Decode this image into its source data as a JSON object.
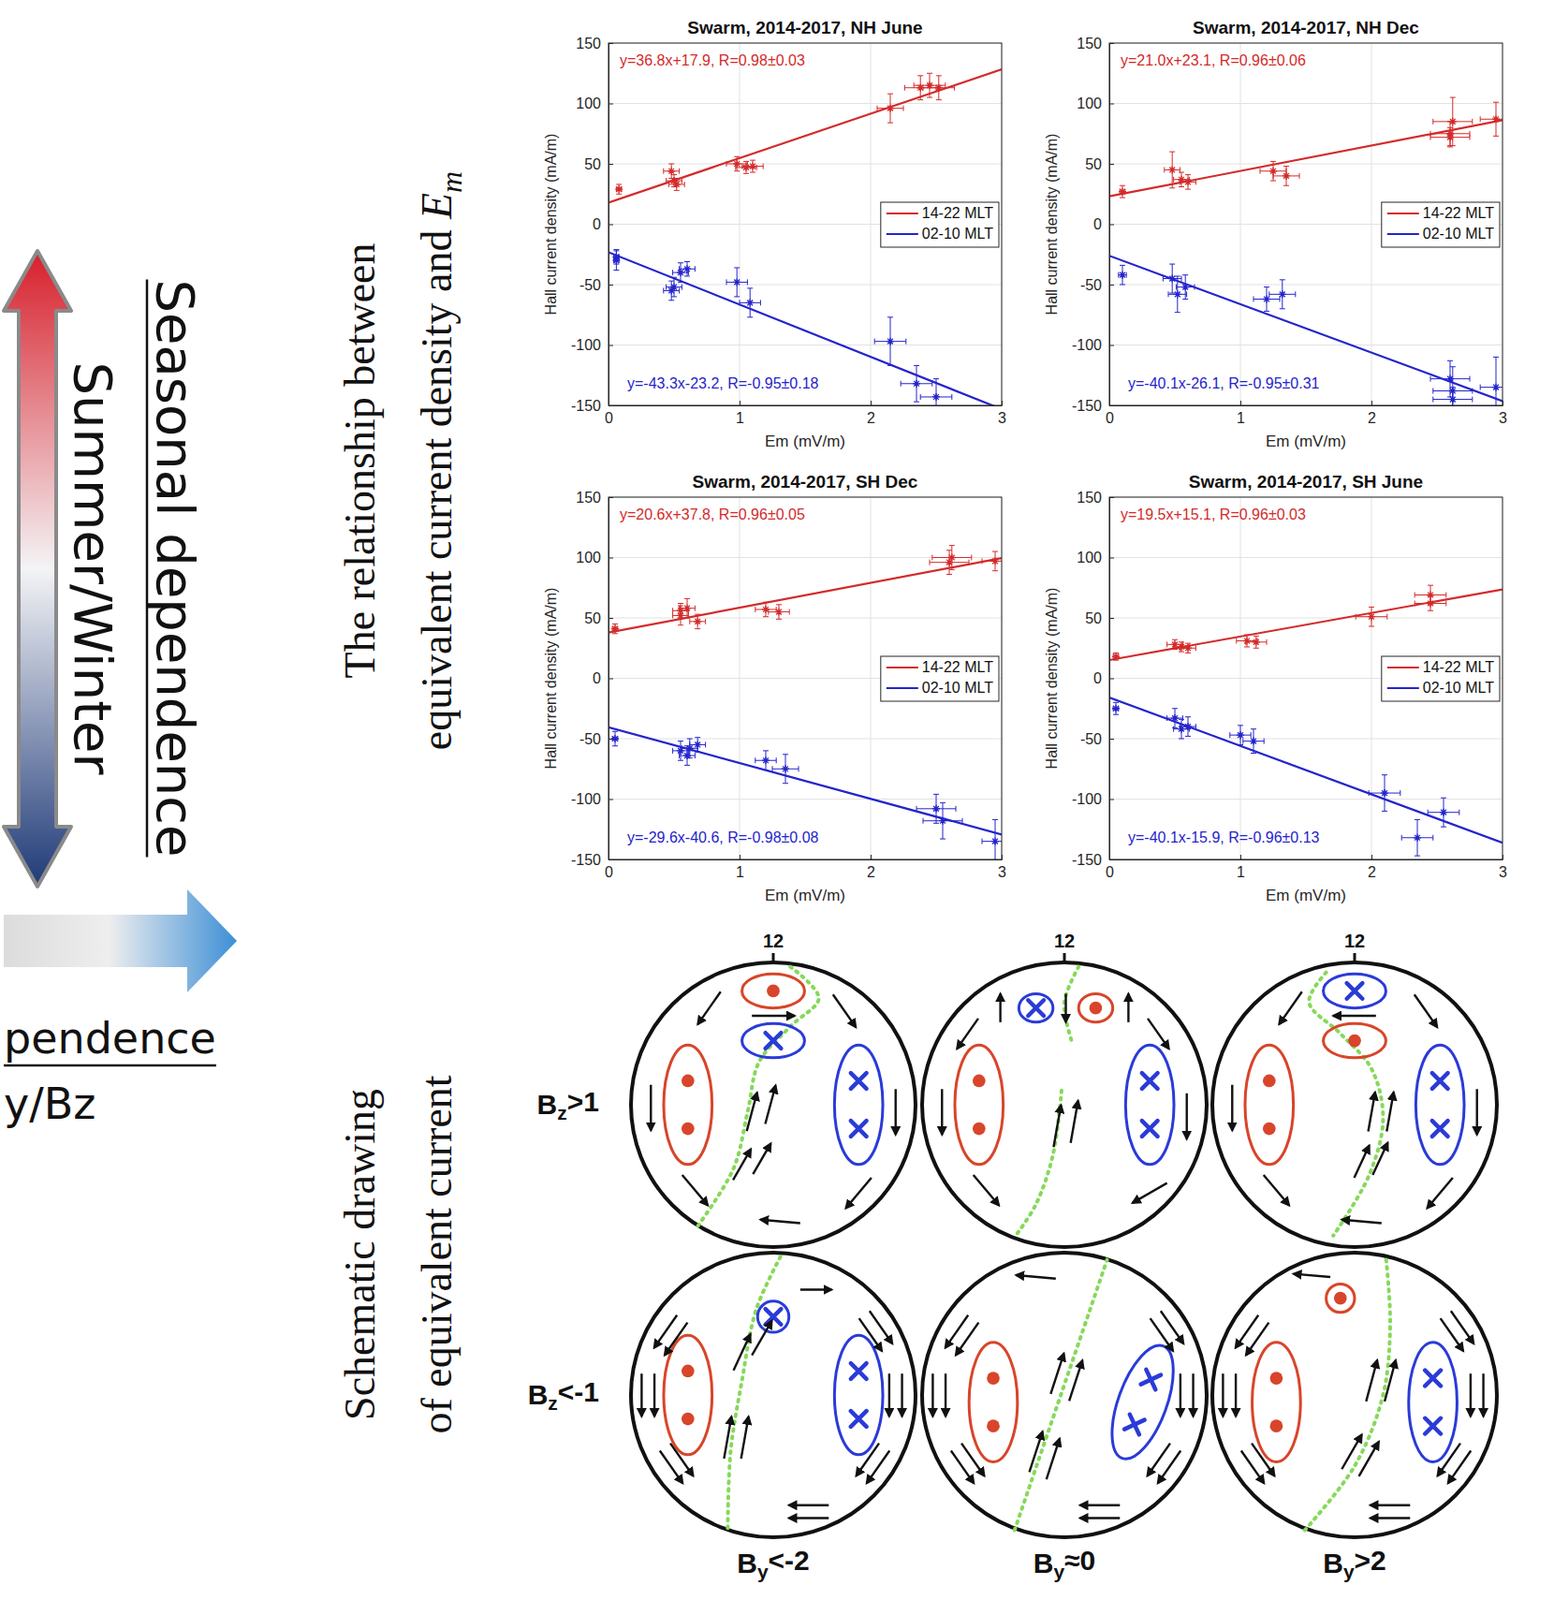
{
  "left_panel": {
    "seasonal_title": "Seasonal dependence",
    "seasonal_label": "Summer/Winter",
    "imf_title_fragment": "pendence",
    "imf_label_fragment": "y/Bz"
  },
  "row_titles": {
    "relationship": [
      [
        "The relationship between"
      ],
      [
        "equivalent current density and ",
        "E",
        "m"
      ]
    ],
    "schematic": [
      [
        "Schematic drawing"
      ],
      [
        "of equivalent current"
      ]
    ]
  },
  "chart_data": [
    {
      "type": "scatter",
      "title": "Swarm, 2014-2017, NH June",
      "x_label": "Em (mV/m)",
      "y_label": "Hall current density (mA/m)",
      "xlim": [
        0,
        3
      ],
      "ylim": [
        -150,
        150
      ],
      "xticks": [
        0,
        1,
        2,
        3
      ],
      "yticks": [
        -150,
        -100,
        -50,
        0,
        50,
        100,
        150
      ],
      "grid": true,
      "legend": "right",
      "series": [
        {
          "name": "14-22 MLT",
          "color": "#d42a2a",
          "marker": "asterisk",
          "x": [
            0.08,
            0.48,
            0.5,
            0.52,
            0.98,
            1.05,
            1.1,
            2.15,
            2.38,
            2.45,
            2.52
          ],
          "values": [
            29,
            44,
            36,
            33,
            50,
            47,
            48,
            96,
            113,
            115,
            113
          ],
          "x_error": [
            0.02,
            0.06,
            0.06,
            0.06,
            0.08,
            0.08,
            0.08,
            0.1,
            0.12,
            0.12,
            0.12
          ],
          "error": [
            4,
            6,
            5,
            5,
            6,
            5,
            5,
            12,
            10,
            10,
            10
          ],
          "fit": {
            "x": [
              0,
              3
            ],
            "values": [
              17.9,
              128.3
            ],
            "label": "y=36.8x+17.9, R=0.98±0.03"
          }
        },
        {
          "name": "02-10 MLT",
          "color": "#2424cc",
          "marker": "asterisk",
          "x": [
            0.06,
            0.06,
            0.48,
            0.5,
            0.55,
            0.6,
            0.98,
            1.08,
            2.15,
            2.35,
            2.5
          ],
          "values": [
            -30,
            -27,
            -55,
            -52,
            -40,
            -37,
            -48,
            -65,
            -97,
            -132,
            -143
          ],
          "x_error": [
            0.02,
            0.02,
            0.06,
            0.06,
            0.06,
            0.06,
            0.08,
            0.08,
            0.12,
            0.12,
            0.12
          ],
          "error": [
            8,
            6,
            8,
            8,
            8,
            6,
            12,
            12,
            20,
            15,
            15
          ],
          "fit": {
            "x": [
              0,
              3
            ],
            "values": [
              -23.2,
              -153.1
            ],
            "label": "y=-43.3x-23.2, R=-0.95±0.18"
          }
        }
      ]
    },
    {
      "type": "scatter",
      "title": "Swarm, 2014-2017, NH Dec",
      "x_label": "Em (mV/m)",
      "y_label": "Hall current density (mA/m)",
      "xlim": [
        0,
        3
      ],
      "ylim": [
        -150,
        150
      ],
      "xticks": [
        0,
        1,
        2,
        3
      ],
      "yticks": [
        -150,
        -100,
        -50,
        0,
        50,
        100,
        150
      ],
      "grid": true,
      "legend": "right",
      "series": [
        {
          "name": "14-22 MLT",
          "color": "#d42a2a",
          "marker": "asterisk",
          "x": [
            0.1,
            0.48,
            0.55,
            0.6,
            1.25,
            1.35,
            2.6,
            2.62,
            2.6,
            2.95
          ],
          "values": [
            27,
            45,
            37,
            35,
            44,
            40,
            75,
            85,
            72,
            87
          ],
          "x_error": [
            0.02,
            0.06,
            0.06,
            0.06,
            0.1,
            0.1,
            0.15,
            0.15,
            0.15,
            0.12
          ],
          "error": [
            5,
            15,
            6,
            6,
            8,
            8,
            10,
            20,
            8,
            14
          ],
          "fit": {
            "x": [
              0,
              3
            ],
            "values": [
              23.1,
              86.1
            ],
            "label": "y=21.0x+23.1, R=0.96±0.06"
          }
        },
        {
          "name": "02-10 MLT",
          "color": "#2424cc",
          "marker": "asterisk",
          "x": [
            0.1,
            0.48,
            0.52,
            0.58,
            1.2,
            1.32,
            2.6,
            2.62,
            2.62,
            2.95
          ],
          "values": [
            -42,
            -45,
            -58,
            -52,
            -62,
            -58,
            -128,
            -138,
            -145,
            -135
          ],
          "x_error": [
            0.03,
            0.07,
            0.07,
            0.07,
            0.1,
            0.1,
            0.15,
            0.15,
            0.15,
            0.12
          ],
          "error": [
            8,
            12,
            15,
            10,
            10,
            12,
            15,
            20,
            10,
            25
          ],
          "fit": {
            "x": [
              0,
              3
            ],
            "values": [
              -26.1,
              -146.4
            ],
            "label": "y=-40.1x-26.1, R=-0.95±0.31"
          }
        }
      ]
    },
    {
      "type": "scatter",
      "title": "Swarm, 2014-2017, SH Dec",
      "x_label": "Em (mV/m)",
      "y_label": "Hall current density (mA/m)",
      "xlim": [
        0,
        3
      ],
      "ylim": [
        -150,
        150
      ],
      "xticks": [
        0,
        1,
        2,
        3
      ],
      "yticks": [
        -150,
        -100,
        -50,
        0,
        50,
        100,
        150
      ],
      "grid": true,
      "legend": "right",
      "series": [
        {
          "name": "14-22 MLT",
          "color": "#d42a2a",
          "marker": "asterisk",
          "x": [
            0.05,
            0.55,
            0.6,
            0.55,
            0.68,
            1.2,
            1.3,
            2.6,
            2.62,
            2.95
          ],
          "values": [
            41,
            52,
            58,
            56,
            47,
            57,
            55,
            96,
            100,
            97
          ],
          "x_error": [
            0.02,
            0.06,
            0.06,
            0.06,
            0.06,
            0.08,
            0.08,
            0.15,
            0.15,
            0.1
          ],
          "error": [
            4,
            8,
            8,
            6,
            6,
            6,
            6,
            10,
            10,
            8
          ],
          "fit": {
            "x": [
              0,
              3
            ],
            "values": [
              37.8,
              99.6
            ],
            "label": "y=20.6x+37.8, R=0.96±0.05"
          }
        },
        {
          "name": "02-10 MLT",
          "color": "#2424cc",
          "marker": "asterisk",
          "x": [
            0.05,
            0.55,
            0.6,
            0.62,
            0.68,
            1.2,
            1.35,
            2.5,
            2.55,
            2.95
          ],
          "values": [
            -50,
            -60,
            -64,
            -58,
            -55,
            -68,
            -75,
            -108,
            -118,
            -135
          ],
          "x_error": [
            0.02,
            0.06,
            0.06,
            0.06,
            0.06,
            0.08,
            0.1,
            0.15,
            0.15,
            0.1
          ],
          "error": [
            6,
            8,
            8,
            8,
            6,
            8,
            12,
            12,
            15,
            18
          ],
          "fit": {
            "x": [
              0,
              3
            ],
            "values": [
              -40.6,
              -129.4
            ],
            "label": "y=-29.6x-40.6, R=-0.98±0.08"
          }
        }
      ]
    },
    {
      "type": "scatter",
      "title": "Swarm, 2014-2017, SH June",
      "x_label": "Em (mV/m)",
      "y_label": "Hall current density (mA/m)",
      "xlim": [
        0,
        3
      ],
      "ylim": [
        -150,
        150
      ],
      "xticks": [
        0,
        1,
        2,
        3
      ],
      "yticks": [
        -150,
        -100,
        -50,
        0,
        50,
        100,
        150
      ],
      "grid": true,
      "legend": "right",
      "series": [
        {
          "name": "14-22 MLT",
          "color": "#d42a2a",
          "marker": "asterisk",
          "x": [
            0.05,
            0.5,
            0.55,
            0.6,
            1.05,
            1.12,
            2.0,
            2.45,
            2.45
          ],
          "values": [
            18,
            28,
            26,
            25,
            31,
            30,
            51,
            62,
            69
          ],
          "x_error": [
            0.02,
            0.06,
            0.06,
            0.06,
            0.08,
            0.08,
            0.12,
            0.12,
            0.12
          ],
          "error": [
            3,
            4,
            4,
            4,
            5,
            5,
            8,
            6,
            8
          ],
          "fit": {
            "x": [
              0,
              3
            ],
            "values": [
              15.1,
              73.6
            ],
            "label": "y=19.5x+15.1, R=0.96±0.03"
          }
        },
        {
          "name": "02-10 MLT",
          "color": "#2424cc",
          "marker": "asterisk",
          "x": [
            0.05,
            0.5,
            0.55,
            0.6,
            1.0,
            1.1,
            2.1,
            2.35,
            2.55
          ],
          "values": [
            -25,
            -33,
            -42,
            -40,
            -47,
            -52,
            -95,
            -132,
            -111
          ],
          "x_error": [
            0.02,
            0.06,
            0.06,
            0.06,
            0.08,
            0.08,
            0.12,
            0.12,
            0.12
          ],
          "error": [
            5,
            8,
            8,
            8,
            8,
            10,
            15,
            15,
            12
          ],
          "fit": {
            "x": [
              0,
              3
            ],
            "values": [
              -15.9,
              -136.2
            ],
            "label": "y=-40.1x-15.9, R=-0.96±0.13"
          }
        }
      ]
    }
  ],
  "schematic": {
    "noon_label": "12",
    "rows": [
      "Bz>1",
      "Bz<-1"
    ],
    "columns": [
      "By<-2",
      "By≈0",
      "By>2"
    ]
  }
}
